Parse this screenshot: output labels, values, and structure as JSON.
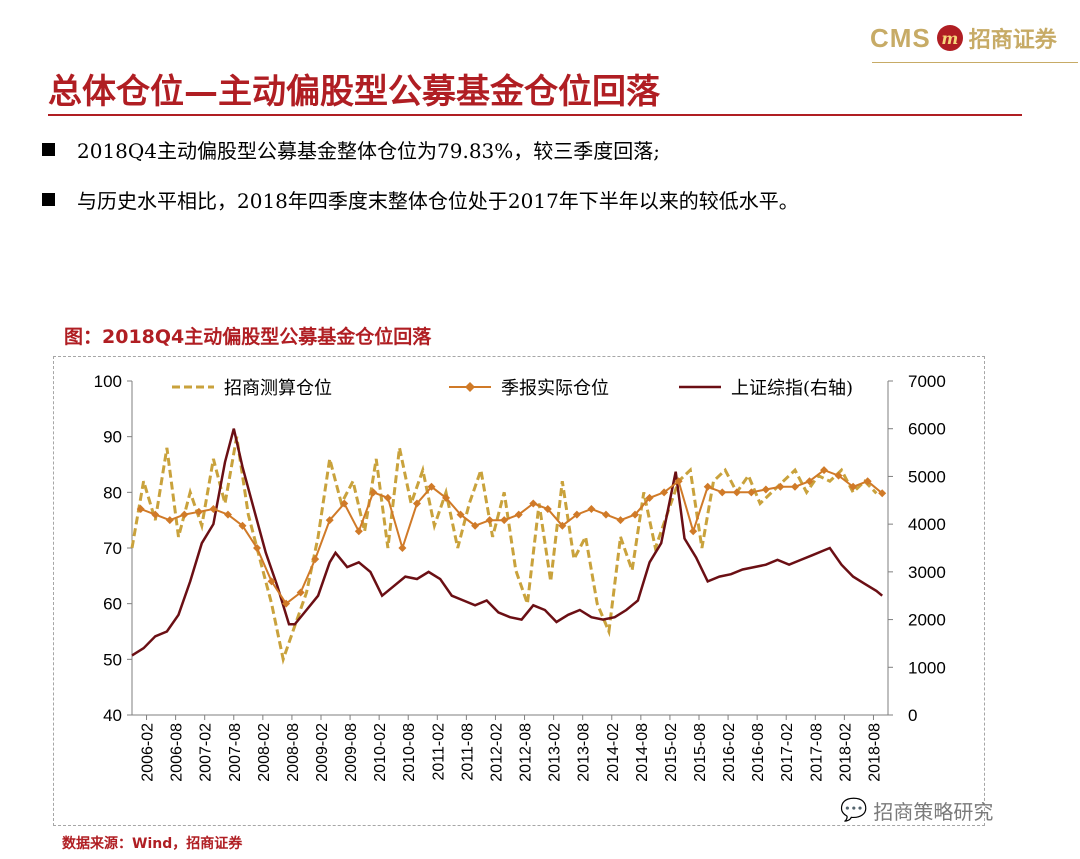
{
  "header": {
    "logo_cms": "CMS",
    "logo_mark": "m",
    "logo_cn": "招商证券",
    "title": "总体仓位—主动偏股型公募基金仓位回落"
  },
  "bullets": [
    "2018Q4主动偏股型公募基金整体仓位为79.83%，较三季度回落;",
    "与历史水平相比，2018年四季度末整体仓位处于2017年下半年以来的较低水平。"
  ],
  "figure": {
    "title": "图：2018Q4主动偏股型公募基金仓位回落",
    "source": "数据来源：Wind，招商证券",
    "watermark": "招商策略研究",
    "watermark_icon": "wechat-icon"
  },
  "colors": {
    "brand_red": "#b01e23",
    "gold": "#c7ab66",
    "estimate": "#c9a23c",
    "reported": "#d07a28",
    "index": "#6b0f14"
  },
  "chart_data": {
    "type": "line",
    "title": "图：2018Q4主动偏股型公募基金仓位回落",
    "xlabel": "",
    "ylabel": "",
    "ylim": [
      40,
      100
    ],
    "y2lim": [
      0,
      7000
    ],
    "y_ticks": [
      "100",
      "90",
      "80",
      "70",
      "60",
      "50",
      "40"
    ],
    "y2_ticks": [
      "7000",
      "6000",
      "5000",
      "4000",
      "3000",
      "2000",
      "1000",
      "0"
    ],
    "x_ticks": [
      "2006-02",
      "2006-08",
      "2007-02",
      "2007-08",
      "2008-02",
      "2008-08",
      "2009-02",
      "2009-08",
      "2010-02",
      "2010-08",
      "2011-02",
      "2011-08",
      "2012-02",
      "2012-08",
      "2013-02",
      "2013-08",
      "2014-02",
      "2014-08",
      "2015-02",
      "2015-08",
      "2016-02",
      "2016-08",
      "2017-02",
      "2017-08",
      "2018-02",
      "2018-08"
    ],
    "legend": [
      "招商测算仓位",
      "季报实际仓位",
      "上证综指(右轴)"
    ],
    "legend_position": "top",
    "series": [
      {
        "name": "招商测算仓位",
        "axis": "left",
        "style": "dashed",
        "x": [
          2006.1,
          2006.3,
          2006.5,
          2006.7,
          2006.9,
          2007.1,
          2007.3,
          2007.5,
          2007.7,
          2007.9,
          2008.1,
          2008.3,
          2008.5,
          2008.7,
          2008.9,
          2009.1,
          2009.3,
          2009.5,
          2009.7,
          2009.9,
          2010.1,
          2010.3,
          2010.5,
          2010.7,
          2010.9,
          2011.1,
          2011.3,
          2011.5,
          2011.7,
          2011.9,
          2012.1,
          2012.3,
          2012.5,
          2012.7,
          2012.9,
          2013.1,
          2013.3,
          2013.5,
          2013.7,
          2013.9,
          2014.1,
          2014.3,
          2014.5,
          2014.7,
          2014.9,
          2015.1,
          2015.3,
          2015.5,
          2015.7,
          2015.9,
          2016.1,
          2016.3,
          2016.5,
          2016.7,
          2016.9,
          2017.1,
          2017.3,
          2017.5,
          2017.7,
          2017.9,
          2018.1,
          2018.3,
          2018.5,
          2018.7,
          2018.9
        ],
        "values": [
          70,
          82,
          75,
          88,
          72,
          80,
          74,
          86,
          78,
          90,
          76,
          68,
          60,
          50,
          56,
          62,
          72,
          86,
          78,
          82,
          73,
          86,
          70,
          88,
          78,
          84,
          74,
          80,
          70,
          78,
          84,
          72,
          80,
          66,
          60,
          78,
          64,
          82,
          68,
          72,
          60,
          55,
          72,
          66,
          80,
          70,
          76,
          82,
          84,
          70,
          82,
          84,
          80,
          83,
          78,
          80,
          82,
          84,
          80,
          83,
          82,
          84,
          80,
          82,
          79.83
        ]
      },
      {
        "name": "季报实际仓位",
        "axis": "left",
        "style": "solid-diamond",
        "x": [
          2006.25,
          2006.5,
          2006.75,
          2007.0,
          2007.25,
          2007.5,
          2007.75,
          2008.0,
          2008.25,
          2008.5,
          2008.75,
          2009.0,
          2009.25,
          2009.5,
          2009.75,
          2010.0,
          2010.25,
          2010.5,
          2010.75,
          2011.0,
          2011.25,
          2011.5,
          2011.75,
          2012.0,
          2012.25,
          2012.5,
          2012.75,
          2013.0,
          2013.25,
          2013.5,
          2013.75,
          2014.0,
          2014.25,
          2014.5,
          2014.75,
          2015.0,
          2015.25,
          2015.5,
          2015.75,
          2016.0,
          2016.25,
          2016.5,
          2016.75,
          2017.0,
          2017.25,
          2017.5,
          2017.75,
          2018.0,
          2018.25,
          2018.5,
          2018.75,
          2019.0
        ],
        "values": [
          77,
          76,
          75,
          76,
          76.5,
          77,
          76,
          74,
          70,
          64,
          60,
          62,
          68,
          75,
          78,
          73,
          80,
          79,
          70,
          78,
          81,
          79,
          76,
          74,
          75,
          75,
          76,
          78,
          77,
          74,
          76,
          77,
          76,
          75,
          76,
          79,
          80,
          82,
          73,
          81,
          80,
          80,
          80,
          80.5,
          81,
          81,
          82,
          84,
          83,
          81,
          82,
          79.83
        ]
      },
      {
        "name": "上证综指(右轴)",
        "axis": "right",
        "style": "solid",
        "x": [
          2006.1,
          2006.3,
          2006.5,
          2006.7,
          2006.9,
          2007.1,
          2007.3,
          2007.5,
          2007.7,
          2007.85,
          2008.0,
          2008.2,
          2008.4,
          2008.6,
          2008.8,
          2008.9,
          2009.1,
          2009.3,
          2009.5,
          2009.6,
          2009.8,
          2010.0,
          2010.2,
          2010.4,
          2010.6,
          2010.8,
          2011.0,
          2011.2,
          2011.4,
          2011.6,
          2011.8,
          2012.0,
          2012.2,
          2012.4,
          2012.6,
          2012.8,
          2013.0,
          2013.2,
          2013.4,
          2013.6,
          2013.8,
          2014.0,
          2014.2,
          2014.4,
          2014.6,
          2014.8,
          2015.0,
          2015.2,
          2015.4,
          2015.45,
          2015.6,
          2015.8,
          2016.0,
          2016.2,
          2016.4,
          2016.6,
          2016.8,
          2017.0,
          2017.2,
          2017.4,
          2017.6,
          2017.8,
          2018.0,
          2018.1,
          2018.3,
          2018.5,
          2018.7,
          2018.9,
          2019.0
        ],
        "values": [
          1250,
          1400,
          1650,
          1750,
          2100,
          2800,
          3600,
          4000,
          5300,
          6000,
          5200,
          4300,
          3400,
          2700,
          1900,
          1900,
          2200,
          2500,
          3200,
          3400,
          3100,
          3200,
          3000,
          2500,
          2700,
          2900,
          2850,
          3000,
          2850,
          2500,
          2400,
          2300,
          2400,
          2150,
          2050,
          2000,
          2300,
          2200,
          1950,
          2100,
          2200,
          2050,
          2000,
          2050,
          2200,
          2400,
          3200,
          3600,
          4800,
          5100,
          3700,
          3300,
          2800,
          2900,
          2950,
          3050,
          3100,
          3150,
          3250,
          3150,
          3250,
          3350,
          3450,
          3500,
          3150,
          2900,
          2750,
          2600,
          2500
        ]
      }
    ]
  }
}
